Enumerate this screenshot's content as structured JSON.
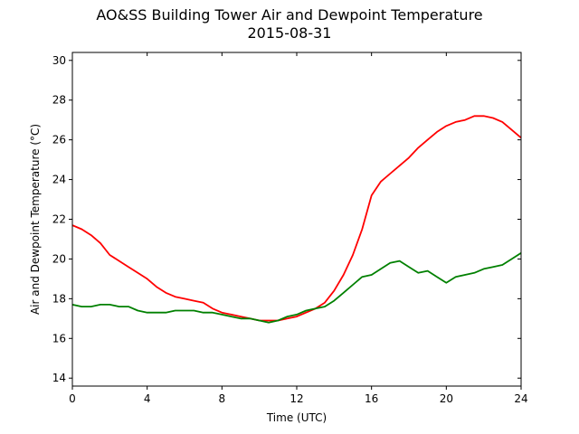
{
  "chart_data": {
    "type": "line",
    "title": "AO&SS Building Tower Air and Dewpoint Temperature",
    "subtitle": "2015-08-31",
    "xlabel": "Time (UTC)",
    "ylabel": "Air and Dewpoint Temperature (°C)",
    "xlim": [
      0,
      24
    ],
    "ylim": [
      13.6,
      30.4
    ],
    "xticks": [
      0,
      4,
      8,
      12,
      16,
      20,
      24
    ],
    "yticks": [
      14,
      16,
      18,
      20,
      22,
      24,
      26,
      28,
      30
    ],
    "grid": false,
    "legend": "none",
    "series": [
      {
        "color": "#ff0000",
        "x": [
          0,
          0.5,
          1,
          1.5,
          2,
          2.5,
          3,
          3.5,
          4,
          4.5,
          5,
          5.5,
          6,
          6.5,
          7,
          7.5,
          8,
          8.5,
          9,
          9.5,
          10,
          10.5,
          11,
          11.5,
          12,
          12.5,
          13,
          13.5,
          14,
          14.5,
          15,
          15.5,
          16,
          16.5,
          17,
          17.5,
          18,
          18.5,
          19,
          19.5,
          20,
          20.5,
          21,
          21.5,
          22,
          22.5,
          23,
          23.5,
          24
        ],
        "y": [
          21.7,
          21.5,
          21.2,
          20.8,
          20.2,
          19.9,
          19.6,
          19.3,
          19.0,
          18.6,
          18.3,
          18.1,
          18.0,
          17.9,
          17.8,
          17.5,
          17.3,
          17.2,
          17.1,
          17.0,
          16.9,
          16.9,
          16.9,
          17.0,
          17.1,
          17.3,
          17.5,
          17.8,
          18.4,
          19.2,
          20.2,
          21.5,
          23.2,
          23.9,
          24.3,
          24.7,
          25.1,
          25.6,
          26.0,
          26.4,
          26.7,
          26.9,
          27.0,
          27.2,
          27.2,
          27.1,
          26.9,
          26.5,
          26.1
        ]
      },
      {
        "color": "#008000",
        "x": [
          0,
          0.5,
          1,
          1.5,
          2,
          2.5,
          3,
          3.5,
          4,
          4.5,
          5,
          5.5,
          6,
          6.5,
          7,
          7.5,
          8,
          8.5,
          9,
          9.5,
          10,
          10.5,
          11,
          11.5,
          12,
          12.5,
          13,
          13.5,
          14,
          14.5,
          15,
          15.5,
          16,
          16.5,
          17,
          17.5,
          18,
          18.5,
          19,
          19.5,
          20,
          20.5,
          21,
          21.5,
          22,
          22.5,
          23,
          23.5,
          24
        ],
        "y": [
          17.7,
          17.6,
          17.6,
          17.7,
          17.7,
          17.6,
          17.6,
          17.4,
          17.3,
          17.3,
          17.3,
          17.4,
          17.4,
          17.4,
          17.3,
          17.3,
          17.2,
          17.1,
          17.0,
          17.0,
          16.9,
          16.8,
          16.9,
          17.1,
          17.2,
          17.4,
          17.5,
          17.6,
          17.9,
          18.3,
          18.7,
          19.1,
          19.2,
          19.5,
          19.8,
          19.9,
          19.6,
          19.3,
          19.4,
          19.1,
          18.8,
          19.1,
          19.2,
          19.3,
          19.5,
          19.6,
          19.7,
          20.0,
          20.3
        ]
      }
    ]
  }
}
